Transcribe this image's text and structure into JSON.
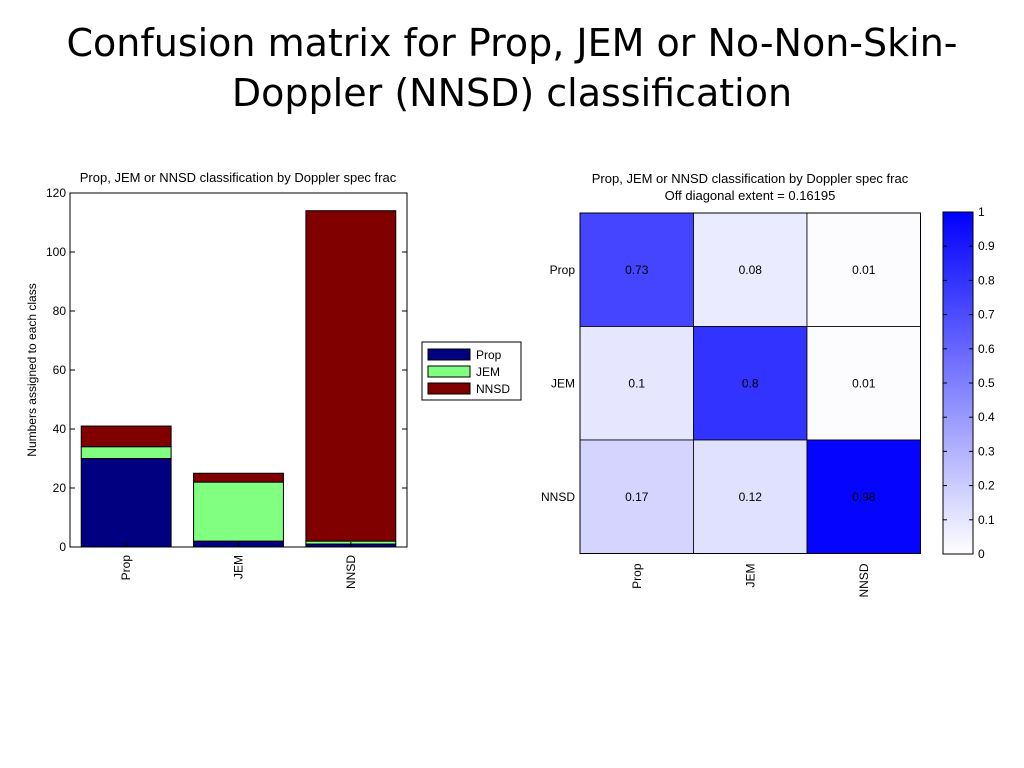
{
  "slide": {
    "title_line1": "Confusion matrix for Prop, JEM or No-Non-Skin-",
    "title_line2": "Doppler (NNSD) classification"
  },
  "chart_data": [
    {
      "type": "bar",
      "stacked": true,
      "title": "Prop, JEM or NNSD classification by Doppler spec frac",
      "ylabel": "Numbers assigned to each class",
      "xlabel": "",
      "categories": [
        "Prop",
        "JEM",
        "NNSD"
      ],
      "series": [
        {
          "name": "Prop",
          "values": [
            30,
            2,
            1
          ],
          "color": "#000080"
        },
        {
          "name": "JEM",
          "values": [
            4,
            20,
            1
          ],
          "color": "#80ff80"
        },
        {
          "name": "NNSD",
          "values": [
            7,
            3,
            112
          ],
          "color": "#800000"
        }
      ],
      "ylim": [
        0,
        120
      ],
      "yticks": [
        0,
        20,
        40,
        60,
        80,
        100,
        120
      ],
      "legend_position": "right"
    },
    {
      "type": "heatmap",
      "title": "Prop, JEM or NNSD classification by Doppler spec frac",
      "subtitle": "Off diagonal extent = 0.16195",
      "row_labels": [
        "Prop",
        "JEM",
        "NNSD"
      ],
      "col_labels": [
        "Prop",
        "JEM",
        "NNSD"
      ],
      "values": [
        [
          0.73,
          0.08,
          0.01
        ],
        [
          0.1,
          0.8,
          0.01
        ],
        [
          0.17,
          0.12,
          0.98
        ]
      ],
      "value_labels": [
        [
          "0.73",
          "0.08",
          "0.01"
        ],
        [
          "0.1",
          "0.8",
          "0.01"
        ],
        [
          "0.17",
          "0.12",
          "0.98"
        ]
      ],
      "colorbar": {
        "min": 0,
        "max": 1,
        "ticks": [
          "0",
          "0.1",
          "0.2",
          "0.3",
          "0.4",
          "0.5",
          "0.6",
          "0.7",
          "0.8",
          "0.9",
          "1"
        ],
        "low_color": "#ffffff",
        "high_color": "#0000ff"
      }
    }
  ]
}
